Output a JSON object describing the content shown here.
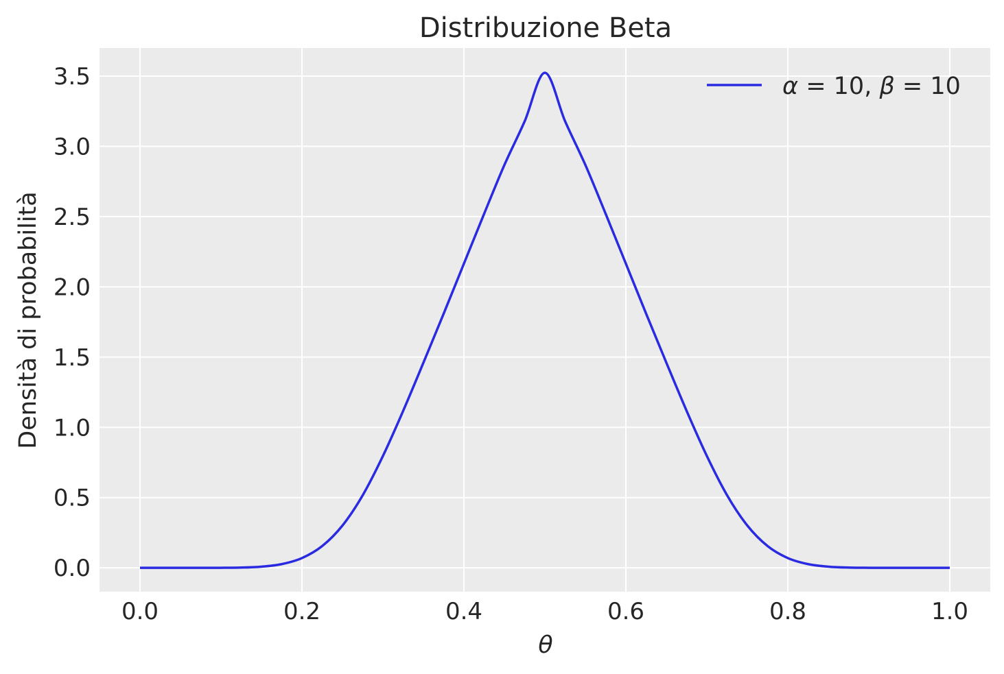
{
  "chart_data": {
    "type": "line",
    "title": "Distribuzione Beta",
    "xlabel": "θ",
    "ylabel": "Densità di probabilità",
    "xlim": [
      -0.05,
      1.05
    ],
    "ylim": [
      -0.17,
      3.7
    ],
    "xticks": [
      0.0,
      0.2,
      0.4,
      0.6,
      0.8,
      1.0
    ],
    "xtick_labels": [
      "0.0",
      "0.2",
      "0.4",
      "0.6",
      "0.8",
      "1.0"
    ],
    "yticks": [
      0.0,
      0.5,
      1.0,
      1.5,
      2.0,
      2.5,
      3.0,
      3.5
    ],
    "ytick_labels": [
      "0.0",
      "0.5",
      "1.0",
      "1.5",
      "2.0",
      "2.5",
      "3.0",
      "3.5"
    ],
    "grid": true,
    "legend_position": "top-right",
    "background_color": "#ebebeb",
    "series": [
      {
        "name": "α = 10, β = 10",
        "legend_label": {
          "alpha_sym": "α",
          "alpha_eq": " = 10, ",
          "beta_sym": "β",
          "beta_eq": " = 10"
        },
        "color": "#2a2ae0",
        "x": [
          0.0,
          0.025,
          0.05,
          0.075,
          0.1,
          0.125,
          0.15,
          0.175,
          0.2,
          0.225,
          0.25,
          0.275,
          0.3,
          0.325,
          0.35,
          0.375,
          0.4,
          0.425,
          0.45,
          0.475,
          0.5,
          0.525,
          0.55,
          0.575,
          0.6,
          0.625,
          0.65,
          0.675,
          0.7,
          0.725,
          0.75,
          0.775,
          0.8,
          0.825,
          0.85,
          0.875,
          0.9,
          0.925,
          0.95,
          0.975,
          1.0
        ],
        "y": [
          0.0,
          0.0,
          0.0,
          0.0001,
          0.0004,
          0.0021,
          0.0083,
          0.0265,
          0.0694,
          0.1549,
          0.3009,
          0.5164,
          0.7962,
          1.1175,
          1.4601,
          1.8091,
          2.1652,
          2.5204,
          2.8676,
          3.1781,
          3.5239,
          3.1781,
          2.8676,
          2.5204,
          2.1652,
          1.8091,
          1.4601,
          1.1175,
          0.7962,
          0.5164,
          0.3009,
          0.1549,
          0.0694,
          0.0265,
          0.0083,
          0.0021,
          0.0004,
          0.0001,
          0.0,
          0.0,
          0.0
        ]
      }
    ]
  }
}
